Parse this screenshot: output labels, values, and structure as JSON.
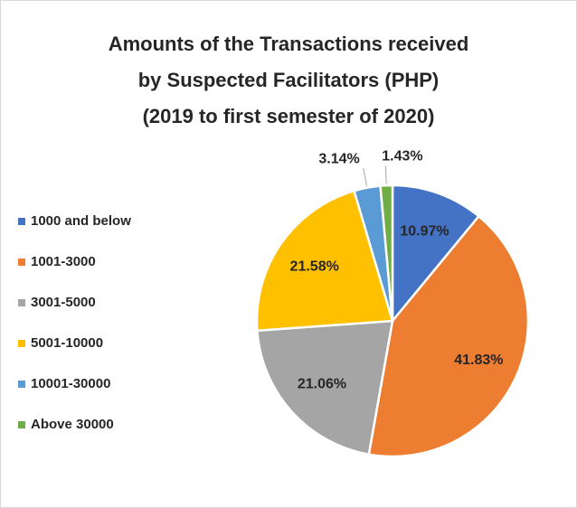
{
  "chart_data": {
    "type": "pie",
    "title": [
      "Amounts of the Transactions received",
      "by Suspected Facilitators (PHP)",
      "(2019 to first semester of 2020)"
    ],
    "categories": [
      "1000 and below",
      "1001-3000",
      "3001-5000",
      "5001-10000",
      "10001-30000",
      "Above 30000"
    ],
    "values": [
      10.97,
      41.83,
      21.06,
      21.58,
      3.14,
      1.43
    ],
    "value_labels": [
      "10.97%",
      "41.83%",
      "21.06%",
      "21.58%",
      "3.14%",
      "1.43%"
    ],
    "colors": [
      "#4472c4",
      "#ed7d31",
      "#a5a5a5",
      "#ffc000",
      "#5b9bd5",
      "#70ad47"
    ],
    "legend": "left"
  }
}
